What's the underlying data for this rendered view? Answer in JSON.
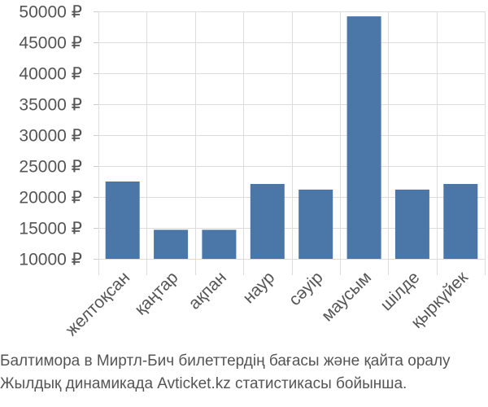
{
  "chart_data": {
    "type": "bar",
    "categories": [
      "желтоқсан",
      "қаңтар",
      "ақпан",
      "наур",
      "сәуір",
      "маусым",
      "шілде",
      "қыркүйек"
    ],
    "values": [
      22500,
      14700,
      14700,
      22100,
      21200,
      49200,
      21200,
      22100
    ],
    "ylim": [
      10000,
      50000
    ],
    "yticks": [
      10000,
      15000,
      20000,
      25000,
      30000,
      35000,
      40000,
      45000,
      50000
    ],
    "ytick_labels": [
      "10000 ₽",
      "15000 ₽",
      "20000 ₽",
      "25000 ₽",
      "30000 ₽",
      "35000 ₽",
      "40000 ₽",
      "45000 ₽",
      "50000 ₽"
    ],
    "grid": true,
    "bar_color": "#4b76a8",
    "grid_color": "#dddddd"
  },
  "caption": {
    "line1": "Балтимора в Миртл-Бич билеттердің бағасы және қайта оралу",
    "line2": "Жылдық динамикада Avticket.kz статистикасы бойынша."
  }
}
